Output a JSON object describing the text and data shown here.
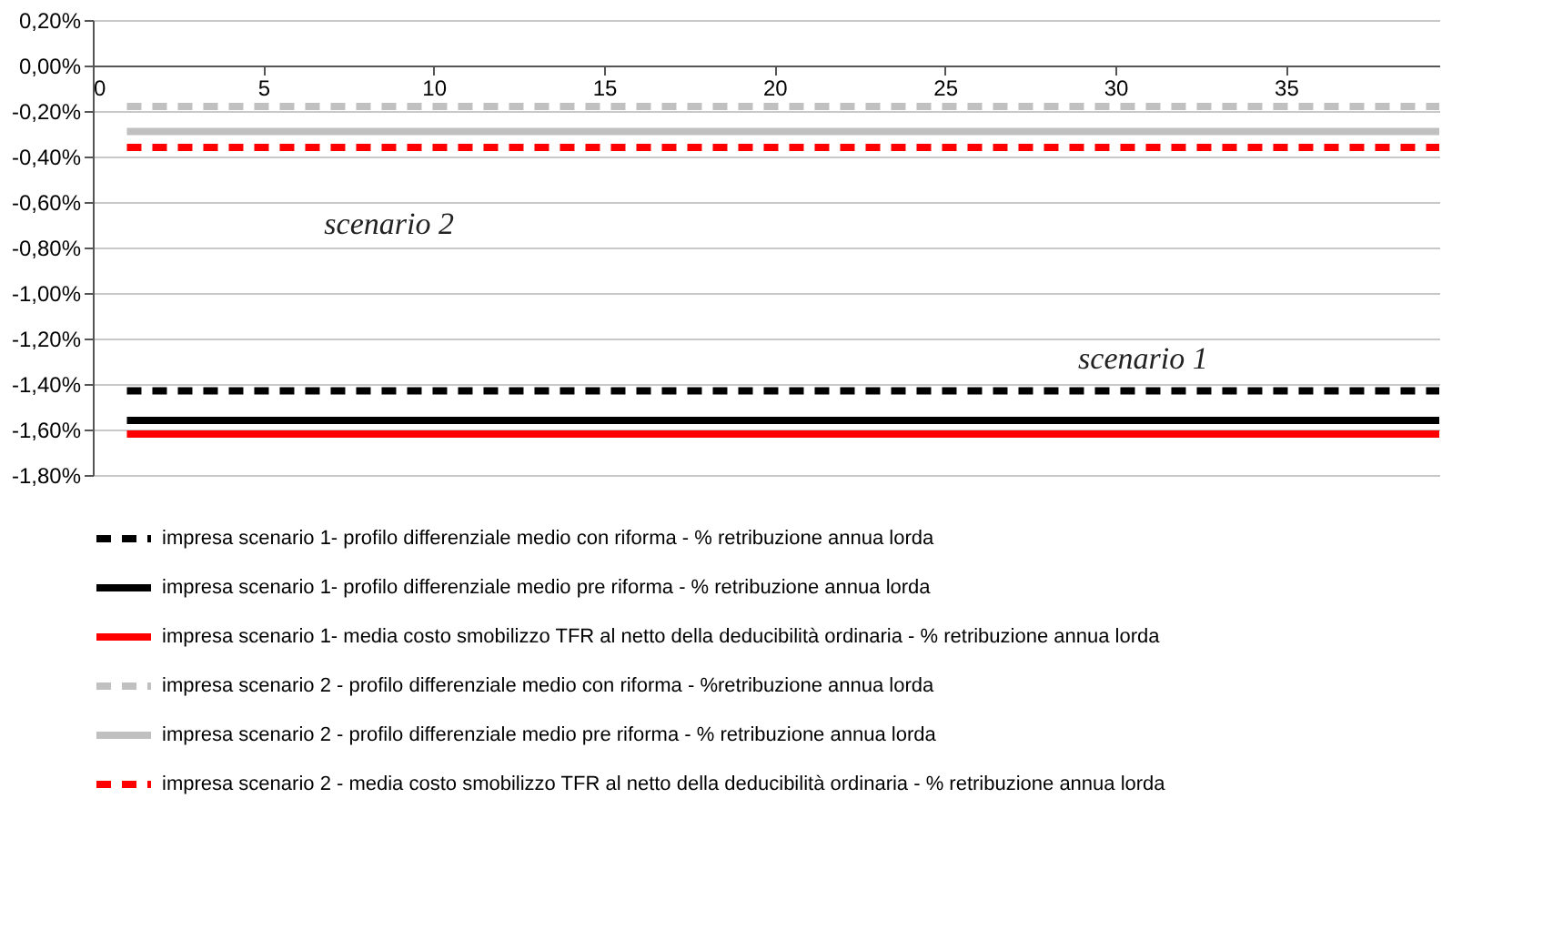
{
  "chart_data": {
    "type": "line",
    "x": [
      1,
      39.5
    ],
    "xlim": [
      0,
      39.5
    ],
    "xticks": [
      0,
      5,
      10,
      15,
      20,
      25,
      30,
      35
    ],
    "ylim": [
      -1.8,
      0.2
    ],
    "yticks": [
      {
        "value": 0.2,
        "label": "0,20%"
      },
      {
        "value": 0,
        "label": "0,00%"
      },
      {
        "value": -0.2,
        "label": "-0,20%"
      },
      {
        "value": -0.4,
        "label": "-0,40%"
      },
      {
        "value": -0.6,
        "label": "-0,60%"
      },
      {
        "value": -0.8,
        "label": "-0,80%"
      },
      {
        "value": -1.0,
        "label": "-1,00%"
      },
      {
        "value": -1.2,
        "label": "-1,20%"
      },
      {
        "value": -1.4,
        "label": "-1,40%"
      },
      {
        "value": -1.6,
        "label": "-1,60%"
      },
      {
        "value": -1.8,
        "label": "-1,80%"
      }
    ],
    "grid": "y",
    "legend": "bottom",
    "marker": "none",
    "annotations": [
      "scenario 2",
      "scenario 1"
    ],
    "series": [
      {
        "name": "impresa scenario 1- profilo differenziale medio con riforma - % retribuzione annua lorda",
        "color": "#000000",
        "line_style": "dashed",
        "values": [
          -1.43,
          -1.43
        ]
      },
      {
        "name": "impresa scenario 1- profilo differenziale medio pre riforma - % retribuzione annua lorda",
        "color": "#000000",
        "line_style": "solid",
        "values": [
          -1.56,
          -1.56
        ]
      },
      {
        "name": "impresa scenario 1- media costo smobilizzo TFR al netto della deducibilità ordinaria - % retribuzione annua lorda",
        "color": "#ff0000",
        "line_style": "solid",
        "values": [
          -1.62,
          -1.62
        ]
      },
      {
        "name": "impresa scenario 2 - profilo differenziale medio con riforma - %retribuzione annua lorda",
        "color": "#c0c0c0",
        "line_style": "dashed",
        "values": [
          -0.18,
          -0.18
        ]
      },
      {
        "name": "impresa scenario 2 - profilo differenziale medio pre riforma - % retribuzione annua lorda",
        "color": "#c0c0c0",
        "line_style": "solid",
        "values": [
          -0.29,
          -0.29
        ]
      },
      {
        "name": "impresa scenario 2 - media costo smobilizzo TFR al netto della deducibilità ordinaria - % retribuzione annua lorda",
        "color": "#ff0000",
        "line_style": "dashed",
        "values": [
          -0.36,
          -0.36
        ]
      }
    ]
  }
}
